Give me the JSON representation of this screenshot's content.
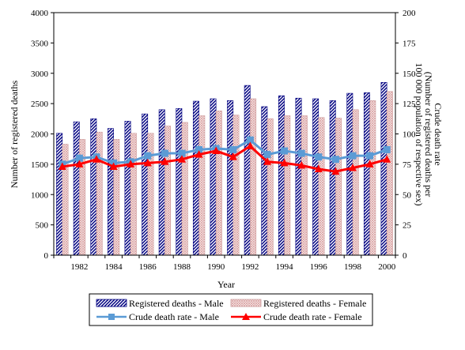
{
  "chart_data": {
    "type": "bar",
    "xlabel": "Year",
    "ylabel": "Number of registered deaths",
    "y2label_lines": [
      "Crude death rate",
      "(Number of registered deaths per",
      "100 000 population of respective sex)"
    ],
    "ylim": [
      0,
      4000
    ],
    "y2lim": [
      0,
      200
    ],
    "yticks": [
      "0",
      "500",
      "1000",
      "1500",
      "2000",
      "2500",
      "3000",
      "3500",
      "4000"
    ],
    "y2ticks": [
      "0",
      "25",
      "50",
      "75",
      "100",
      "125",
      "150",
      "175",
      "200"
    ],
    "x": [
      1981,
      1982,
      1983,
      1984,
      1985,
      1986,
      1987,
      1988,
      1989,
      1990,
      1991,
      1992,
      1993,
      1994,
      1995,
      1996,
      1997,
      1998,
      1999,
      2000
    ],
    "xticklabels": [
      "1982",
      "1984",
      "1986",
      "1988",
      "1990",
      "1992",
      "1994",
      "1996",
      "1998",
      "2000"
    ],
    "bar_series": [
      {
        "name": "Registered deaths - Male",
        "color": "#000080",
        "pattern": "diagonal-stripes",
        "values": [
          2010,
          2200,
          2250,
          2090,
          2210,
          2330,
          2400,
          2420,
          2540,
          2580,
          2550,
          2800,
          2450,
          2630,
          2590,
          2580,
          2550,
          2670,
          2680,
          2850
        ]
      },
      {
        "name": "Registered deaths - Female",
        "color": "#cc9999",
        "pattern": "pink-hatch",
        "values": [
          1830,
          1910,
          2030,
          1910,
          2010,
          2010,
          2130,
          2190,
          2300,
          2380,
          2310,
          2580,
          2250,
          2300,
          2300,
          2270,
          2260,
          2400,
          2550,
          2700
        ]
      }
    ],
    "line_series": [
      {
        "name": "Crude death rate - Male",
        "color": "#5b9bd5",
        "marker": "square",
        "axis": "right",
        "values": [
          75,
          80,
          81,
          76,
          77,
          82,
          84,
          84,
          87,
          88,
          87,
          95,
          83,
          86,
          84,
          81,
          79,
          82,
          82,
          87
        ]
      },
      {
        "name": "Crude death rate - Female",
        "color": "#ff0000",
        "marker": "triangle",
        "axis": "right",
        "values": [
          73,
          75,
          79,
          73,
          75,
          76,
          77,
          79,
          83,
          86,
          81,
          90,
          77,
          76,
          74,
          71,
          69,
          72,
          75,
          79
        ]
      }
    ],
    "legend_position": "bottom"
  }
}
